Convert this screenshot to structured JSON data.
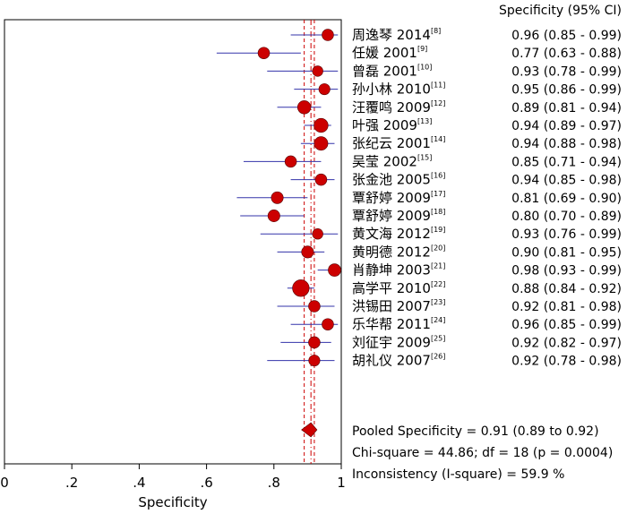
{
  "chart_data": {
    "type": "forest",
    "xlabel": "Specificity",
    "xlim": [
      0,
      1
    ],
    "xticks": [
      {
        "value": 0,
        "label": "0"
      },
      {
        "value": 0.2,
        "label": ".2"
      },
      {
        "value": 0.4,
        "label": ".4"
      },
      {
        "value": 0.6,
        "label": ".6"
      },
      {
        "value": 0.8,
        "label": ".8"
      },
      {
        "value": 1,
        "label": "1"
      }
    ],
    "column_header": "Specificity (95% CI)",
    "studies": [
      {
        "author": "周逸琴 2014",
        "ref": "[8]",
        "value": 0.96,
        "lo": 0.85,
        "hi": 0.99,
        "text": "0.96 (0.85 - 0.99)",
        "weight": 3
      },
      {
        "author": "任媛 2001",
        "ref": "[9]",
        "value": 0.77,
        "lo": 0.63,
        "hi": 0.88,
        "text": "0.77 (0.63 - 0.88)",
        "weight": 3
      },
      {
        "author": "曾磊 2001",
        "ref": "[10]",
        "value": 0.93,
        "lo": 0.78,
        "hi": 0.99,
        "text": "0.93 (0.78 - 0.99)",
        "weight": 2.5
      },
      {
        "author": "孙小林 2010",
        "ref": "[11]",
        "value": 0.95,
        "lo": 0.86,
        "hi": 0.99,
        "text": "0.95 (0.86 - 0.99)",
        "weight": 2.8
      },
      {
        "author": "汪覆鸣 2009",
        "ref": "[12]",
        "value": 0.89,
        "lo": 0.81,
        "hi": 0.94,
        "text": "0.89 (0.81 - 0.94)",
        "weight": 3.8
      },
      {
        "author": "叶强 2009",
        "ref": "[13]",
        "value": 0.94,
        "lo": 0.89,
        "hi": 0.97,
        "text": "0.94 (0.89 - 0.97)",
        "weight": 4.2
      },
      {
        "author": "张纪云 2001",
        "ref": "[14]",
        "value": 0.94,
        "lo": 0.88,
        "hi": 0.98,
        "text": "0.94 (0.88 - 0.98)",
        "weight": 4
      },
      {
        "author": "吴莹 2002",
        "ref": "[15]",
        "value": 0.85,
        "lo": 0.71,
        "hi": 0.94,
        "text": "0.85 (0.71 - 0.94)",
        "weight": 3
      },
      {
        "author": "张金池 2005",
        "ref": "[16]",
        "value": 0.94,
        "lo": 0.85,
        "hi": 0.98,
        "text": "0.94 (0.85 - 0.98)",
        "weight": 3
      },
      {
        "author": "覃舒婷 2009",
        "ref": "[17]",
        "value": 0.81,
        "lo": 0.69,
        "hi": 0.9,
        "text": "0.81 (0.69 - 0.90)",
        "weight": 3.2
      },
      {
        "author": "覃舒婷 2009",
        "ref": "[18]",
        "value": 0.8,
        "lo": 0.7,
        "hi": 0.89,
        "text": "0.80 (0.70 - 0.89)",
        "weight": 3.2
      },
      {
        "author": "黄文海 2012",
        "ref": "[19]",
        "value": 0.93,
        "lo": 0.76,
        "hi": 0.99,
        "text": "0.93 (0.76 - 0.99)",
        "weight": 2.5
      },
      {
        "author": "黄明德 2012",
        "ref": "[20]",
        "value": 0.9,
        "lo": 0.81,
        "hi": 0.95,
        "text": "0.90 (0.81 - 0.95)",
        "weight": 3.2
      },
      {
        "author": "肖静坤 2003",
        "ref": "[21]",
        "value": 0.98,
        "lo": 0.93,
        "hi": 0.99,
        "text": "0.98 (0.93 - 0.99)",
        "weight": 3.5
      },
      {
        "author": "高学平 2010",
        "ref": "[22]",
        "value": 0.88,
        "lo": 0.84,
        "hi": 0.92,
        "text": "0.88 (0.84 - 0.92)",
        "weight": 5.5
      },
      {
        "author": "洪锡田 2007",
        "ref": "[23]",
        "value": 0.92,
        "lo": 0.81,
        "hi": 0.98,
        "text": "0.92 (0.81 - 0.98)",
        "weight": 3
      },
      {
        "author": "乐华帮 2011",
        "ref": "[24]",
        "value": 0.96,
        "lo": 0.85,
        "hi": 0.99,
        "text": "0.96 (0.85 - 0.99)",
        "weight": 3
      },
      {
        "author": "刘征宇 2009",
        "ref": "[25]",
        "value": 0.92,
        "lo": 0.82,
        "hi": 0.97,
        "text": "0.92 (0.82 - 0.97)",
        "weight": 3
      },
      {
        "author": "胡礼仪 2007",
        "ref": "[26]",
        "value": 0.92,
        "lo": 0.78,
        "hi": 0.98,
        "text": "0.92 (0.78 - 0.98)",
        "weight": 2.8
      }
    ],
    "pooled": {
      "value": 0.91,
      "lo": 0.89,
      "hi": 0.92,
      "text": "Pooled Specificity = 0.91 (0.89 to 0.92)"
    },
    "heterogeneity": [
      "Chi-square = 44.86; df = 18 (p = 0.0004)",
      "Inconsistency (I-square) = 59.9 %"
    ],
    "grid": false,
    "colors": {
      "marker": "#cc0000",
      "ci_line": "#3333aa",
      "pooled_line": "#cc0000",
      "axis": "#000000"
    }
  }
}
